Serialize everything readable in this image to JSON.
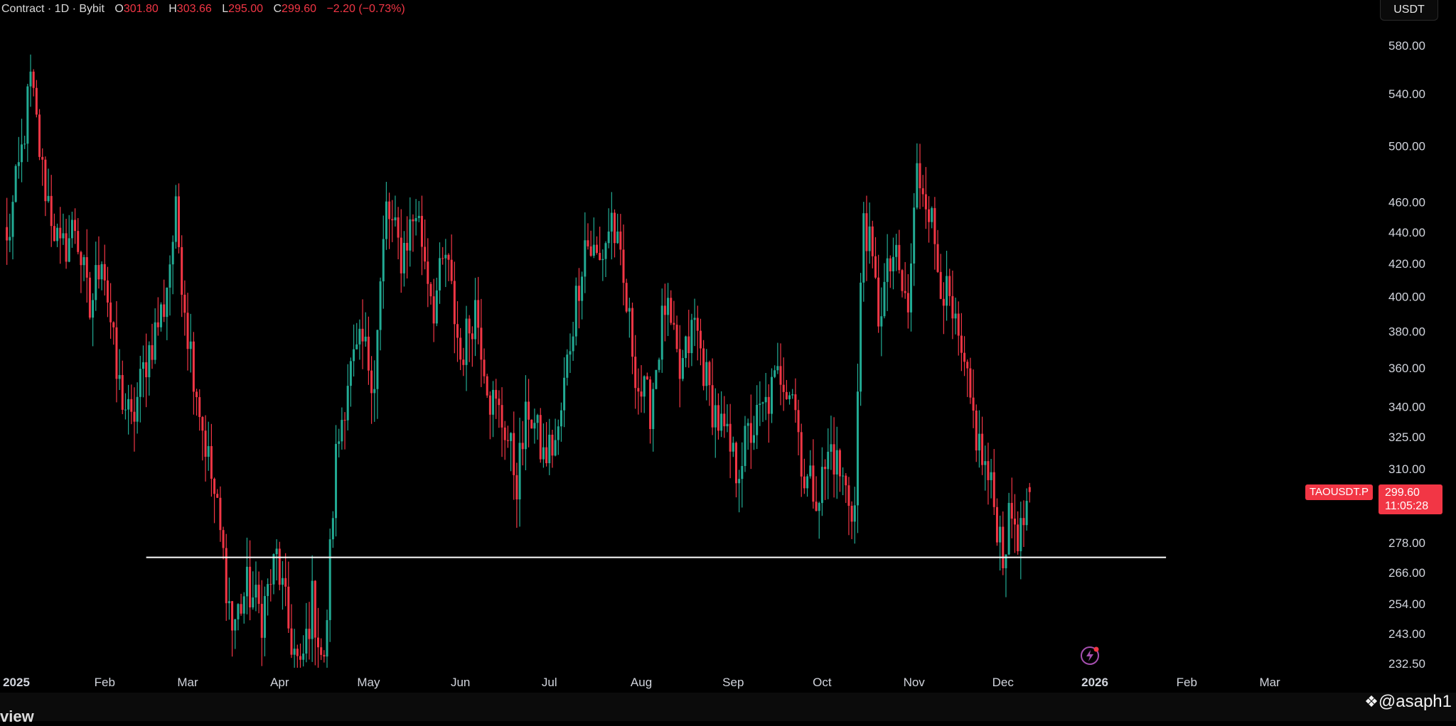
{
  "header": {
    "title": "Contract · 1D · Bybit",
    "open_label": "O",
    "open": "301.80",
    "high_label": "H",
    "high": "303.66",
    "low_label": "L",
    "low": "295.00",
    "close_label": "C",
    "close": "299.60",
    "change": "−2.20 (−0.73%)"
  },
  "currency_button": "USDT",
  "symbol_tag": "TAOUSDT.P",
  "last_price": "299.60",
  "countdown": "11:05:28",
  "watermark": "@asaph1",
  "bottom_partial_text": "view",
  "colors": {
    "up": "#22ab94",
    "down": "#f23645",
    "background": "#000000",
    "axis_text": "#d1d4dc",
    "line": "#ffffff"
  },
  "chart_data": {
    "type": "candlestick",
    "symbol": "TAOUSDT.P",
    "interval": "1D",
    "exchange": "Bybit",
    "scale": "log",
    "ylim": [
      225,
      600
    ],
    "y_ticks": [
      "580.00",
      "540.00",
      "500.00",
      "460.00",
      "440.00",
      "420.00",
      "400.00",
      "380.00",
      "360.00",
      "340.00",
      "325.00",
      "310.00",
      "278.00",
      "266.00",
      "254.00",
      "243.00",
      "232.50"
    ],
    "x_ticks": [
      "2025",
      "Feb",
      "Mar",
      "Apr",
      "May",
      "Jun",
      "Jul",
      "Aug",
      "Sep",
      "Oct",
      "Nov",
      "Dec",
      "2026",
      "Feb",
      "Mar"
    ],
    "x_tick_dates": [
      "2025-01-01",
      "2025-02-01",
      "2025-03-01",
      "2025-04-01",
      "2025-05-01",
      "2025-06-01",
      "2025-07-01",
      "2025-08-01",
      "2025-09-01",
      "2025-10-01",
      "2025-11-01",
      "2025-12-01",
      "2026-01-01",
      "2026-02-01",
      "2026-03-01"
    ],
    "horizontal_line": {
      "value": 272,
      "from": "2025-02-15",
      "to": "2026-01-25"
    },
    "grid": false,
    "last_candle": {
      "date": "2025-12-10",
      "open": 301.8,
      "high": 303.66,
      "low": 295.0,
      "close": 299.6
    },
    "close_anchors": [
      [
        "2024-12-30",
        430
      ],
      [
        "2025-01-04",
        495
      ],
      [
        "2025-01-07",
        550
      ],
      [
        "2025-01-11",
        480
      ],
      [
        "2025-01-17",
        425
      ],
      [
        "2025-01-22",
        445
      ],
      [
        "2025-01-27",
        390
      ],
      [
        "2025-01-31",
        430
      ],
      [
        "2025-02-05",
        355
      ],
      [
        "2025-02-10",
        330
      ],
      [
        "2025-02-15",
        365
      ],
      [
        "2025-02-21",
        395
      ],
      [
        "2025-02-25",
        450
      ],
      [
        "2025-03-01",
        380
      ],
      [
        "2025-03-06",
        330
      ],
      [
        "2025-03-11",
        290
      ],
      [
        "2025-03-16",
        245
      ],
      [
        "2025-03-21",
        260
      ],
      [
        "2025-03-26",
        250
      ],
      [
        "2025-03-31",
        272
      ],
      [
        "2025-04-04",
        245
      ],
      [
        "2025-04-08",
        228
      ],
      [
        "2025-04-12",
        255
      ],
      [
        "2025-04-16",
        230
      ],
      [
        "2025-04-20",
        315
      ],
      [
        "2025-04-24",
        355
      ],
      [
        "2025-04-29",
        372
      ],
      [
        "2025-05-03",
        355
      ],
      [
        "2025-05-07",
        455
      ],
      [
        "2025-05-12",
        425
      ],
      [
        "2025-05-17",
        455
      ],
      [
        "2025-05-23",
        395
      ],
      [
        "2025-05-27",
        425
      ],
      [
        "2025-06-01",
        365
      ],
      [
        "2025-06-06",
        395
      ],
      [
        "2025-06-11",
        345
      ],
      [
        "2025-06-16",
        330
      ],
      [
        "2025-06-20",
        305
      ],
      [
        "2025-06-24",
        340
      ],
      [
        "2025-06-29",
        315
      ],
      [
        "2025-07-04",
        325
      ],
      [
        "2025-07-08",
        375
      ],
      [
        "2025-07-13",
        435
      ],
      [
        "2025-07-18",
        420
      ],
      [
        "2025-07-22",
        450
      ],
      [
        "2025-07-26",
        405
      ],
      [
        "2025-07-31",
        350
      ],
      [
        "2025-08-04",
        340
      ],
      [
        "2025-08-09",
        395
      ],
      [
        "2025-08-14",
        355
      ],
      [
        "2025-08-19",
        385
      ],
      [
        "2025-08-24",
        345
      ],
      [
        "2025-08-29",
        325
      ],
      [
        "2025-09-02",
        310
      ],
      [
        "2025-09-06",
        325
      ],
      [
        "2025-09-12",
        340
      ],
      [
        "2025-09-17",
        358
      ],
      [
        "2025-09-21",
        350
      ],
      [
        "2025-09-25",
        305
      ],
      [
        "2025-09-30",
        300
      ],
      [
        "2025-10-04",
        320
      ],
      [
        "2025-10-09",
        300
      ],
      [
        "2025-10-12",
        292
      ],
      [
        "2025-10-15",
        455
      ],
      [
        "2025-10-20",
        390
      ],
      [
        "2025-10-25",
        425
      ],
      [
        "2025-10-30",
        390
      ],
      [
        "2025-11-02",
        480
      ],
      [
        "2025-11-05",
        470
      ],
      [
        "2025-11-09",
        420
      ],
      [
        "2025-11-14",
        385
      ],
      [
        "2025-11-18",
        355
      ],
      [
        "2025-11-23",
        320
      ],
      [
        "2025-11-27",
        300
      ],
      [
        "2025-12-01",
        275
      ],
      [
        "2025-12-04",
        290
      ],
      [
        "2025-12-07",
        280
      ],
      [
        "2025-12-10",
        299.6
      ]
    ]
  }
}
